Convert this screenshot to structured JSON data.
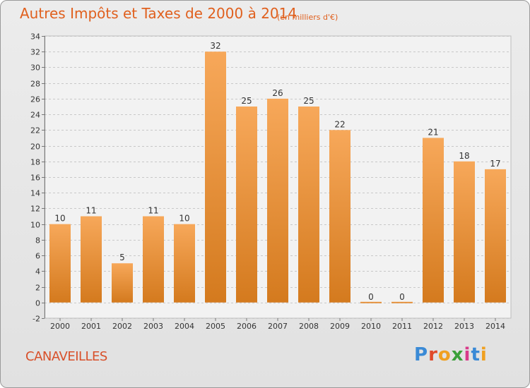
{
  "title": "Autres Impôts et Taxes de 2000 à 2014",
  "subtitle": "(en milliers d'€)",
  "commune": "CANAVEILLES",
  "logo": {
    "text": "Proxiti",
    "letters": [
      "P",
      "r",
      "o",
      "x",
      "i",
      "t",
      "i"
    ],
    "colors": [
      "#3a8ad6",
      "#e04a2a",
      "#f0a020",
      "#3aa03a",
      "#d83a8a",
      "#3a8ad6",
      "#f0a020"
    ]
  },
  "colors": {
    "bar_top": "#f7a85a",
    "bar_bottom": "#d47a1e",
    "title": "#e0601e",
    "grid": "#c8c8c8"
  },
  "chart_data": {
    "type": "bar",
    "title": "Autres Impôts et Taxes de 2000 à 2014",
    "subtitle": "(en milliers d'€)",
    "categories": [
      "2000",
      "2001",
      "2002",
      "2003",
      "2004",
      "2005",
      "2006",
      "2007",
      "2008",
      "2009",
      "2010",
      "2011",
      "2012",
      "2013",
      "2014"
    ],
    "values": [
      10,
      11,
      5,
      11,
      10,
      32,
      25,
      26,
      25,
      22,
      0,
      0,
      21,
      18,
      17
    ],
    "ylim": [
      -2,
      34
    ],
    "yticks": [
      -2,
      0,
      2,
      4,
      6,
      8,
      10,
      12,
      14,
      16,
      18,
      20,
      22,
      24,
      26,
      28,
      30,
      32,
      34
    ],
    "grid": true,
    "data_labels": true
  }
}
